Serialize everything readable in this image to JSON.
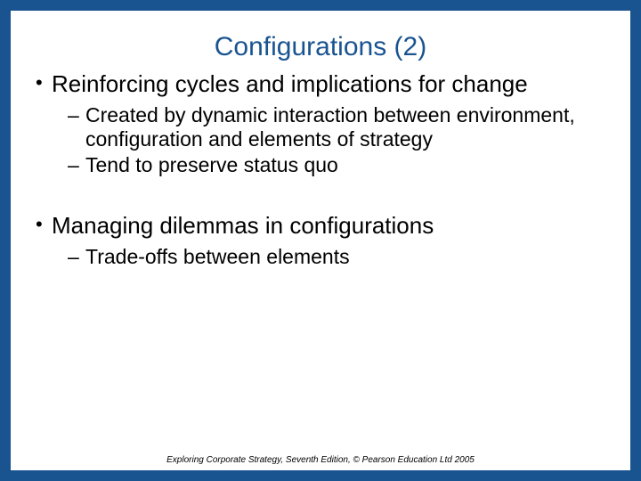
{
  "colors": {
    "background": "#1a5490",
    "slide_background": "#ffffff",
    "title_color": "#1a5490",
    "text_color": "#000000"
  },
  "typography": {
    "title_fontsize": 30,
    "level1_fontsize": 26,
    "level2_fontsize": 23,
    "footer_fontsize": 10
  },
  "title": "Configurations (2)",
  "bullets": {
    "b1": "Reinforcing cycles and implications for change",
    "b1_1": "Created by dynamic interaction between environment, configuration and elements of strategy",
    "b1_2": "Tend to preserve status quo",
    "b2": "Managing dilemmas in configurations",
    "b2_1": "Trade-offs between elements"
  },
  "footer": "Exploring Corporate Strategy, Seventh Edition, © Pearson Education Ltd 2005"
}
